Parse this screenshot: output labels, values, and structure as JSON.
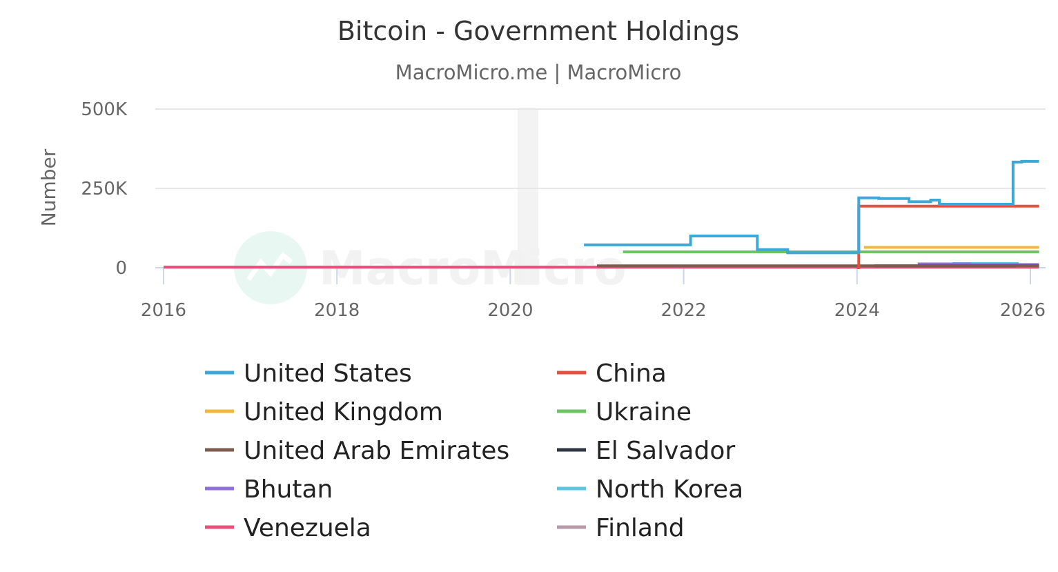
{
  "chart_data": {
    "type": "line",
    "title": "Bitcoin - Government Holdings",
    "subtitle": "MacroMicro.me | MacroMicro",
    "xlabel": "",
    "ylabel": "Number",
    "xlim": [
      2016,
      2026.1
    ],
    "ylim": [
      0,
      500000
    ],
    "x_ticks": [
      2016,
      2018,
      2020,
      2022,
      2024,
      2026
    ],
    "x_tick_labels": [
      "2016",
      "2018",
      "2020",
      "2022",
      "2024",
      "2026"
    ],
    "y_ticks": [
      0,
      250000,
      500000
    ],
    "y_tick_labels": [
      "0",
      "250K",
      "500K"
    ],
    "grid": true,
    "legend_position": "bottom",
    "watermark": "MacroMicro",
    "series": [
      {
        "name": "United States",
        "color": "#3ba8d8",
        "step": true,
        "x": [
          2020.85,
          2022.08,
          2022.85,
          2023.2,
          2024.02,
          2024.25,
          2024.6,
          2024.85,
          2024.95,
          2025.8,
          2025.9
        ],
        "y": [
          72000,
          100000,
          57000,
          47000,
          220000,
          218000,
          208000,
          213000,
          200000,
          333000,
          335000
        ]
      },
      {
        "name": "China",
        "color": "#e4503d",
        "step": true,
        "x": [
          2024.0,
          2024.02,
          2026.1
        ],
        "y": [
          0,
          194000,
          194000
        ]
      },
      {
        "name": "United Kingdom",
        "color": "#efb93c",
        "step": true,
        "x": [
          2024.08,
          2026.1
        ],
        "y": [
          64000,
          64000
        ]
      },
      {
        "name": "Ukraine",
        "color": "#6cc464",
        "step": true,
        "x": [
          2021.3,
          2026.1
        ],
        "y": [
          50000,
          50000
        ]
      },
      {
        "name": "United Arab Emirates",
        "color": "#7d5c4f",
        "step": true,
        "x": [
          2021.0,
          2026.1
        ],
        "y": [
          6000,
          6000
        ]
      },
      {
        "name": "El Salvador",
        "color": "#2f3542",
        "step": true,
        "x": [
          2024.2,
          2026.1
        ],
        "y": [
          6000,
          6000
        ]
      },
      {
        "name": "Bhutan",
        "color": "#8f6ed5",
        "step": true,
        "x": [
          2024.7,
          2025.3,
          2026.1
        ],
        "y": [
          12000,
          10000,
          10000
        ]
      },
      {
        "name": "North Korea",
        "color": "#5bc4e0",
        "step": true,
        "x": [
          2025.1,
          2025.85,
          2026.1
        ],
        "y": [
          13000,
          5000,
          5000
        ]
      },
      {
        "name": "Venezuela",
        "color": "#e8507a",
        "step": true,
        "x": [
          2016.0,
          2026.1
        ],
        "y": [
          2000,
          2000
        ]
      },
      {
        "name": "Finland",
        "color": "#b89aaa",
        "step": true,
        "x": [
          2016.0,
          2026.1
        ],
        "y": [
          1500,
          1500
        ]
      }
    ]
  }
}
